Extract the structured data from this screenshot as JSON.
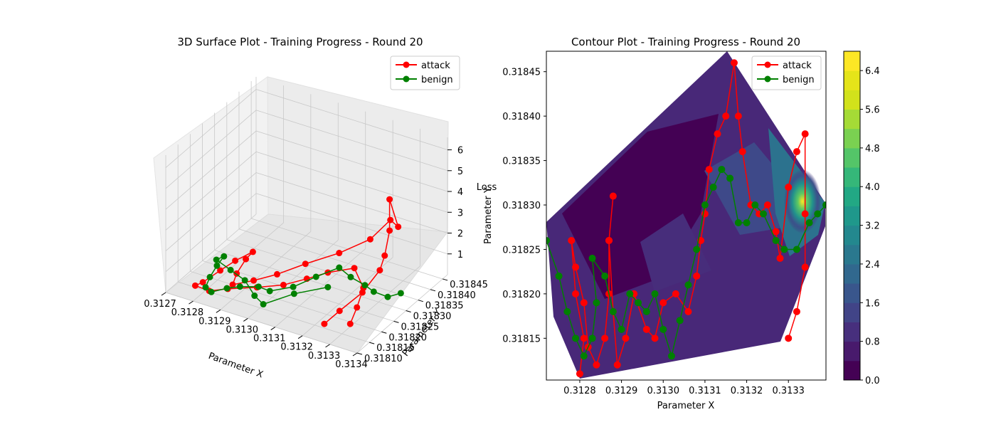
{
  "colors": {
    "attack": "#ff0000",
    "benign": "#008000",
    "pane": "#f2f2f2",
    "grid": "#c8c8c8",
    "contour_base": "#440154"
  },
  "chart_data": [
    {
      "type": "scatter",
      "projection": "3d",
      "title": "3D Surface Plot - Training Progress - Round 20",
      "xlabel": "Parameter X",
      "ylabel": "Parameter Y",
      "zlabel": "Loss",
      "x_ticks": [
        "0.3127",
        "0.3128",
        "0.3129",
        "0.3130",
        "0.3131",
        "0.3132",
        "0.3133",
        "0.3134"
      ],
      "y_ticks": [
        "0.31810",
        "0.31815",
        "0.31820",
        "0.31825",
        "0.31830",
        "0.31835",
        "0.31840",
        "0.31845"
      ],
      "z_ticks": [
        "1",
        "2",
        "3",
        "4",
        "5",
        "6"
      ],
      "xlim": [
        0.3127,
        0.3134
      ],
      "ylim": [
        0.3181,
        0.31847
      ],
      "zlim": [
        0,
        6.6
      ],
      "grid": true,
      "legend": "top-right",
      "series": [
        {
          "name": "attack",
          "color": "#ff0000",
          "marker": "circle-line",
          "points": [
            [
              0.31328,
              0.3181,
              0.9
            ],
            [
              0.3133,
              0.31814,
              1.2
            ],
            [
              0.31333,
              0.3182,
              1.6
            ],
            [
              0.31334,
              0.31826,
              2.1
            ],
            [
              0.31334,
              0.31828,
              2.6
            ],
            [
              0.31334,
              0.3183,
              3.6
            ],
            [
              0.31334,
              0.3183,
              5.1
            ],
            [
              0.3133,
              0.31838,
              2.8
            ],
            [
              0.3132,
              0.31846,
              1.9
            ],
            [
              0.31318,
              0.3184,
              1.5
            ],
            [
              0.31312,
              0.31834,
              1.2
            ],
            [
              0.31305,
              0.31828,
              1.0
            ],
            [
              0.313,
              0.31822,
              0.9
            ],
            [
              0.31295,
              0.31818,
              0.8
            ],
            [
              0.3129,
              0.31815,
              0.7
            ],
            [
              0.31287,
              0.3182,
              0.6
            ],
            [
              0.31285,
              0.31826,
              0.6
            ],
            [
              0.31284,
              0.3183,
              0.5
            ],
            [
              0.31282,
              0.31825,
              0.5
            ],
            [
              0.31281,
              0.3182,
              0.5
            ],
            [
              0.3128,
              0.31814,
              0.5
            ],
            [
              0.31279,
              0.31812,
              0.5
            ],
            [
              0.31285,
              0.31811,
              0.6
            ],
            [
              0.3129,
              0.31813,
              0.7
            ],
            [
              0.31298,
              0.31816,
              0.8
            ],
            [
              0.31305,
              0.31819,
              0.9
            ],
            [
              0.3131,
              0.31823,
              1.0
            ],
            [
              0.31315,
              0.31826,
              1.2
            ],
            [
              0.31322,
              0.31829,
              1.4
            ],
            [
              0.31328,
              0.31826,
              1.0
            ],
            [
              0.31331,
              0.3182,
              0.8
            ],
            [
              0.31333,
              0.31815,
              0.6
            ]
          ]
        },
        {
          "name": "benign",
          "color": "#008000",
          "marker": "circle-line",
          "points": [
            [
              0.31339,
              0.31829,
              0.9
            ],
            [
              0.31336,
              0.31827,
              0.8
            ],
            [
              0.3133,
              0.31828,
              0.7
            ],
            [
              0.31325,
              0.3183,
              0.6
            ],
            [
              0.31318,
              0.31832,
              0.5
            ],
            [
              0.31312,
              0.31834,
              0.5
            ],
            [
              0.31308,
              0.31829,
              0.4
            ],
            [
              0.31305,
              0.31823,
              0.4
            ],
            [
              0.313,
              0.31819,
              0.4
            ],
            [
              0.31295,
              0.3182,
              0.3
            ],
            [
              0.3129,
              0.31818,
              0.3
            ],
            [
              0.31287,
              0.31816,
              0.3
            ],
            [
              0.31284,
              0.31813,
              0.3
            ],
            [
              0.31281,
              0.31814,
              0.3
            ],
            [
              0.31279,
              0.31818,
              0.3
            ],
            [
              0.31278,
              0.31822,
              0.4
            ],
            [
              0.31277,
              0.31826,
              0.4
            ],
            [
              0.31276,
              0.31824,
              0.4
            ],
            [
              0.31283,
              0.31822,
              0.4
            ],
            [
              0.3129,
              0.3182,
              0.4
            ],
            [
              0.31298,
              0.31815,
              0.5
            ],
            [
              0.31303,
              0.31813,
              0.5
            ],
            [
              0.31308,
              0.3182,
              0.5
            ],
            [
              0.31315,
              0.31826,
              0.5
            ]
          ]
        }
      ]
    },
    {
      "type": "line",
      "overlay": "filled-contour",
      "title": "Contour Plot - Training Progress - Round 20",
      "xlabel": "Parameter X",
      "ylabel": "Parameter Y",
      "x_ticks": [
        "0.3128",
        "0.3129",
        "0.3130",
        "0.3131",
        "0.3132",
        "0.3133"
      ],
      "y_ticks": [
        "0.31815",
        "0.31820",
        "0.31825",
        "0.31830",
        "0.31835",
        "0.31840",
        "0.31845"
      ],
      "xlim": [
        0.31272,
        0.31339
      ],
      "ylim": [
        0.318103,
        0.318473
      ],
      "grid": false,
      "legend": "top-right",
      "colorbar": {
        "ticks": [
          "0.0",
          "0.8",
          "1.6",
          "2.4",
          "3.2",
          "4.0",
          "4.8",
          "5.6",
          "6.4"
        ],
        "range": [
          0.0,
          6.8
        ],
        "levels": 17,
        "colormap": "viridis"
      },
      "series": [
        {
          "name": "attack",
          "color": "#ff0000",
          "marker": "circle-line",
          "points": [
            [
              0.3128,
              0.31811
            ],
            [
              0.31281,
              0.31815
            ],
            [
              0.31279,
              0.3182
            ],
            [
              0.31278,
              0.31826
            ],
            [
              0.31279,
              0.31823
            ],
            [
              0.31281,
              0.31819
            ],
            [
              0.31282,
              0.31814
            ],
            [
              0.31284,
              0.31812
            ],
            [
              0.31286,
              0.31815
            ],
            [
              0.31287,
              0.3182
            ],
            [
              0.31287,
              0.31826
            ],
            [
              0.31288,
              0.31831
            ],
            [
              0.31287,
              0.31826
            ],
            [
              0.31288,
              0.31818
            ],
            [
              0.31289,
              0.31812
            ],
            [
              0.31291,
              0.31815
            ],
            [
              0.31293,
              0.3182
            ],
            [
              0.31296,
              0.31816
            ],
            [
              0.31298,
              0.31815
            ],
            [
              0.313,
              0.31819
            ],
            [
              0.31303,
              0.3182
            ],
            [
              0.31306,
              0.31818
            ],
            [
              0.31308,
              0.31822
            ],
            [
              0.31309,
              0.31826
            ],
            [
              0.3131,
              0.31829
            ],
            [
              0.31311,
              0.31834
            ],
            [
              0.31313,
              0.31838
            ],
            [
              0.31315,
              0.3184
            ],
            [
              0.31317,
              0.31846
            ],
            [
              0.31318,
              0.3184
            ],
            [
              0.31319,
              0.31836
            ],
            [
              0.31321,
              0.3183
            ],
            [
              0.31323,
              0.31829
            ],
            [
              0.31325,
              0.3183
            ],
            [
              0.31327,
              0.31827
            ],
            [
              0.31328,
              0.31824
            ],
            [
              0.3133,
              0.31832
            ],
            [
              0.31332,
              0.31836
            ],
            [
              0.31334,
              0.31838
            ],
            [
              0.31334,
              0.31829
            ],
            [
              0.31334,
              0.31823
            ],
            [
              0.31332,
              0.31818
            ],
            [
              0.3133,
              0.31815
            ]
          ]
        },
        {
          "name": "benign",
          "color": "#008000",
          "marker": "circle-line",
          "points": [
            [
              0.31272,
              0.31826
            ],
            [
              0.31275,
              0.31822
            ],
            [
              0.31277,
              0.31818
            ],
            [
              0.31279,
              0.31815
            ],
            [
              0.31281,
              0.31813
            ],
            [
              0.31283,
              0.31815
            ],
            [
              0.31284,
              0.31819
            ],
            [
              0.31283,
              0.31824
            ],
            [
              0.31286,
              0.31822
            ],
            [
              0.31288,
              0.31818
            ],
            [
              0.3129,
              0.31816
            ],
            [
              0.31292,
              0.3182
            ],
            [
              0.31294,
              0.31819
            ],
            [
              0.31296,
              0.31818
            ],
            [
              0.31298,
              0.3182
            ],
            [
              0.313,
              0.31816
            ],
            [
              0.31302,
              0.31813
            ],
            [
              0.31304,
              0.31817
            ],
            [
              0.31306,
              0.31821
            ],
            [
              0.31308,
              0.31825
            ],
            [
              0.3131,
              0.3183
            ],
            [
              0.31312,
              0.31832
            ],
            [
              0.31314,
              0.31834
            ],
            [
              0.31316,
              0.31833
            ],
            [
              0.31318,
              0.31828
            ],
            [
              0.3132,
              0.31828
            ],
            [
              0.31322,
              0.3183
            ],
            [
              0.31324,
              0.31829
            ],
            [
              0.31327,
              0.31826
            ],
            [
              0.31329,
              0.31825
            ],
            [
              0.31332,
              0.31825
            ],
            [
              0.31335,
              0.31828
            ],
            [
              0.31337,
              0.31829
            ],
            [
              0.31339,
              0.3183
            ]
          ]
        }
      ]
    }
  ]
}
